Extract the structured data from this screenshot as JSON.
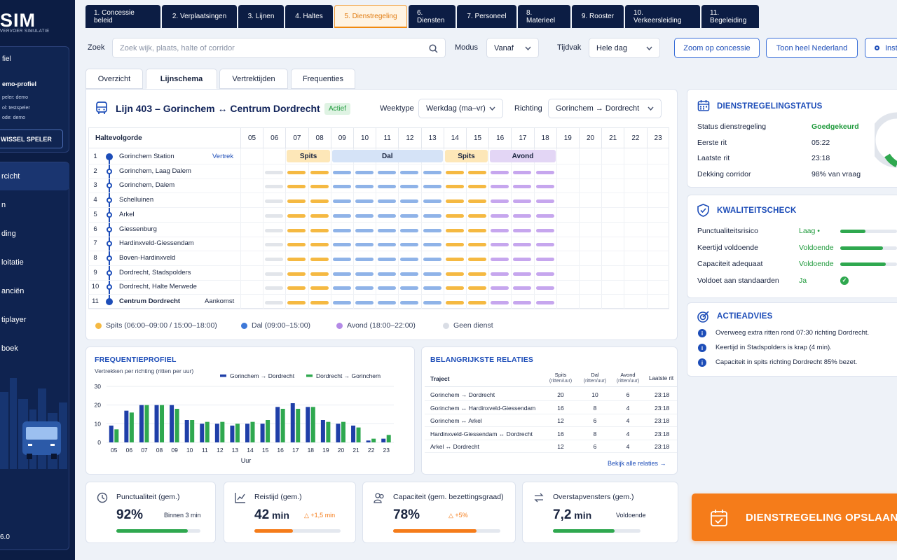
{
  "app": {
    "logo": "SIM",
    "logo_sub": "VERVOER SIMULATIE",
    "version": "6.0"
  },
  "sidebar": {
    "profile_title": "fiel",
    "profile_name": "emo-profiel",
    "profile_lines": [
      "peler: demo",
      "ol: testspeler",
      "ode: demo"
    ],
    "switch_label": "WISSEL SPELER",
    "nav": [
      {
        "label": "rcicht",
        "active": true
      },
      {
        "label": "n"
      },
      {
        "label": "ding"
      },
      {
        "label": "loitatie"
      },
      {
        "label": "anciën"
      },
      {
        "label": "tiplayer"
      },
      {
        "label": "boek"
      }
    ]
  },
  "tabs": [
    "1. Concessie beleid",
    "2. Verplaatsingen",
    "3. Lijnen",
    "4. Haltes",
    "5. Dienstregeling",
    "6. Diensten",
    "7. Personeel",
    "8. Materieel",
    "9. Rooster",
    "10. Verkeersleiding",
    "11. Begeleiding"
  ],
  "active_tab": 4,
  "search": {
    "label": "Zoek",
    "placeholder": "Zoek wijk, plaats, halte of corridor"
  },
  "modus": {
    "label": "Modus",
    "value": "Vanaf"
  },
  "tijdvak": {
    "label": "Tijdvak",
    "value": "Hele dag"
  },
  "buttons": {
    "zoom": "Zoom op concessie",
    "nl": "Toon heel Nederland",
    "inst": "Inst"
  },
  "subtabs": [
    "Overzicht",
    "Lijnschema",
    "Vertrektijden",
    "Frequenties"
  ],
  "active_subtab": 1,
  "line": {
    "title": "Lijn 403 – Gorinchem ↔ Centrum Dordrecht",
    "status": "Actief",
    "weektype_label": "Weektype",
    "weektype": "Werkdag (ma–vr)",
    "richting_label": "Richting",
    "richting": "Gorinchem → Dordrecht"
  },
  "grid": {
    "header": "Haltevolgorde",
    "hours": [
      "05",
      "06",
      "07",
      "08",
      "09",
      "10",
      "11",
      "12",
      "13",
      "14",
      "15",
      "16",
      "17",
      "18",
      "19",
      "20",
      "21",
      "22",
      "23"
    ],
    "bands": [
      {
        "label": "Spits",
        "color": "#fde7b8"
      },
      {
        "label": "Dal",
        "color": "#d5e3f7"
      },
      {
        "label": "Spits",
        "color": "#fde7b8"
      },
      {
        "label": "Avond",
        "color": "#e3d6f5"
      }
    ],
    "stops": [
      {
        "n": "1",
        "name": "Gorinchem Station",
        "tag": "Vertrek"
      },
      {
        "n": "2",
        "name": "Gorinchem, Laag Dalem",
        "tag": ""
      },
      {
        "n": "3",
        "name": "Gorinchem, Dalem",
        "tag": ""
      },
      {
        "n": "4",
        "name": "Schelluinen",
        "tag": ""
      },
      {
        "n": "5",
        "name": "Arkel",
        "tag": ""
      },
      {
        "n": "6",
        "name": "Giessenburg",
        "tag": ""
      },
      {
        "n": "7",
        "name": "Hardinxveld-Giessendam",
        "tag": ""
      },
      {
        "n": "8",
        "name": "Boven-Hardinxveld",
        "tag": ""
      },
      {
        "n": "9",
        "name": "Dordrecht, Stadspolders",
        "tag": ""
      },
      {
        "n": "10",
        "name": "Dordrecht, Halte Merwede",
        "tag": ""
      },
      {
        "n": "11",
        "name": "Centrum Dordrecht",
        "tag": "Aankomst"
      }
    ],
    "legend": [
      {
        "label": "Spits (06:00–09:00 / 15:00–18:00)",
        "color": "#f5b942"
      },
      {
        "label": "Dal (09:00–15:00)",
        "color": "#3d78d8"
      },
      {
        "label": "Avond (18:00–22:00)",
        "color": "#b48ae6"
      },
      {
        "label": "Geen dienst",
        "color": "#d9dde5"
      }
    ],
    "period_colors": {
      "geen": "#e2e5ea",
      "spits": "#f5b942",
      "dal": "#8fb3e8",
      "avond": "#c6a6ee"
    }
  },
  "freq": {
    "title": "FREQUENTIEPROFIEL",
    "subtitle": "Vertrekken per richting (ritten per uur)",
    "xlabel": "Uur"
  },
  "chart_data": {
    "type": "bar",
    "title": "FREQUENTIEPROFIEL",
    "subtitle": "Vertrekken per richting (ritten per uur)",
    "xlabel": "Uur",
    "ylabel": "",
    "categories": [
      "05",
      "06",
      "07",
      "08",
      "09",
      "10",
      "11",
      "12",
      "13",
      "14",
      "15",
      "16",
      "17",
      "18",
      "19",
      "20",
      "21",
      "22",
      "23"
    ],
    "ylim": [
      0,
      30
    ],
    "yticks": [
      0,
      10,
      20,
      30
    ],
    "series": [
      {
        "name": "Gorinchem → Dordrecht",
        "color": "#1f3fa8",
        "values": [
          9,
          17,
          20,
          20,
          20,
          12,
          10,
          10,
          9,
          10,
          10,
          19,
          21,
          19,
          12,
          10,
          9,
          1,
          2
        ]
      },
      {
        "name": "Dordrecht → Gorinchem",
        "color": "#2fa84f",
        "values": [
          7,
          16,
          20,
          20,
          18,
          12,
          11,
          11,
          10,
          11,
          12,
          18,
          18,
          19,
          11,
          11,
          8,
          2,
          4
        ]
      }
    ]
  },
  "relations": {
    "title": "BELANGRIJKSTE RELATIES",
    "headers": [
      "Traject",
      "Spits\n(ritten/uur)",
      "Dal\n(ritten/uur)",
      "Avond\n(ritten/uur)",
      "Laatste rit"
    ],
    "h": [
      "Traject",
      "Spits",
      "(ritten/uur)",
      "Dal",
      "(ritten/uur)",
      "Avond",
      "(ritten/uur)",
      "Laatste rit"
    ],
    "rows": [
      [
        "Gorinchem → Dordrecht",
        "20",
        "10",
        "6",
        "23:18"
      ],
      [
        "Gorinchem ↔ Hardinxveld-Giessendam",
        "16",
        "8",
        "4",
        "23:18"
      ],
      [
        "Gorinchem ↔ Arkel",
        "12",
        "6",
        "4",
        "23:18"
      ],
      [
        "Hardinxveld-Giessendam ↔ Dordrecht",
        "16",
        "8",
        "4",
        "23:18"
      ],
      [
        "Arkel ↔ Dordrecht",
        "12",
        "6",
        "4",
        "23:18"
      ]
    ],
    "link": "Bekijk alle relaties →"
  },
  "status": {
    "title": "DIENSTREGELINGSTATUS",
    "rows": [
      {
        "k": "Status dienstregeling",
        "v": "Goedgekeurd",
        "color": "#1f9a3c"
      },
      {
        "k": "Eerste rit",
        "v": "05:22",
        "color": "#1a2540"
      },
      {
        "k": "Laatste rit",
        "v": "23:18",
        "color": "#1a2540"
      },
      {
        "k": "Dekking corridor",
        "v": "98% van vraag",
        "color": "#1a2540"
      }
    ]
  },
  "quality": {
    "title": "KWALITEITSCHECK",
    "rows": [
      {
        "k": "Punctualiteitsrisico",
        "v": "Laag •",
        "level": 0.45
      },
      {
        "k": "Keertijd voldoende",
        "v": "Voldoende",
        "level": 0.75
      },
      {
        "k": "Capaciteit adequaat",
        "v": "Voldoende",
        "level": 0.8
      },
      {
        "k": "Voldoet aan standaarden",
        "v": "Ja",
        "level": null
      }
    ]
  },
  "advice": {
    "title": "ACTIEADVIES",
    "items": [
      "Overweeg extra ritten rond 07:30 richting Dordrecht.",
      "Keertijd in Stadspolders is krap (4 min).",
      "Capaciteit in spits richting Dordrecht 85% bezet."
    ]
  },
  "kpis": [
    {
      "label": "Punctualiteit (gem.)",
      "value": "92%",
      "unit": "",
      "sub": "Binnen 3 min",
      "progress": 0.85,
      "color": "#2fa84f"
    },
    {
      "label": "Reistijd (gem.)",
      "value": "42",
      "unit": " min",
      "sub": "△ +1,5 min",
      "progress": 0.45,
      "color": "#f57c1a"
    },
    {
      "label": "Capaciteit (gem. bezettingsgraad)",
      "value": "78%",
      "unit": "",
      "sub": "△ +5%",
      "progress": 0.78,
      "color": "#f57c1a"
    },
    {
      "label": "Overstapvensters (gem.)",
      "value": "7,2",
      "unit": " min",
      "sub": "Voldoende",
      "progress": 0.7,
      "color": "#2fa84f"
    }
  ],
  "save": {
    "label": "DIENSTREGELING OPSLAAN"
  }
}
